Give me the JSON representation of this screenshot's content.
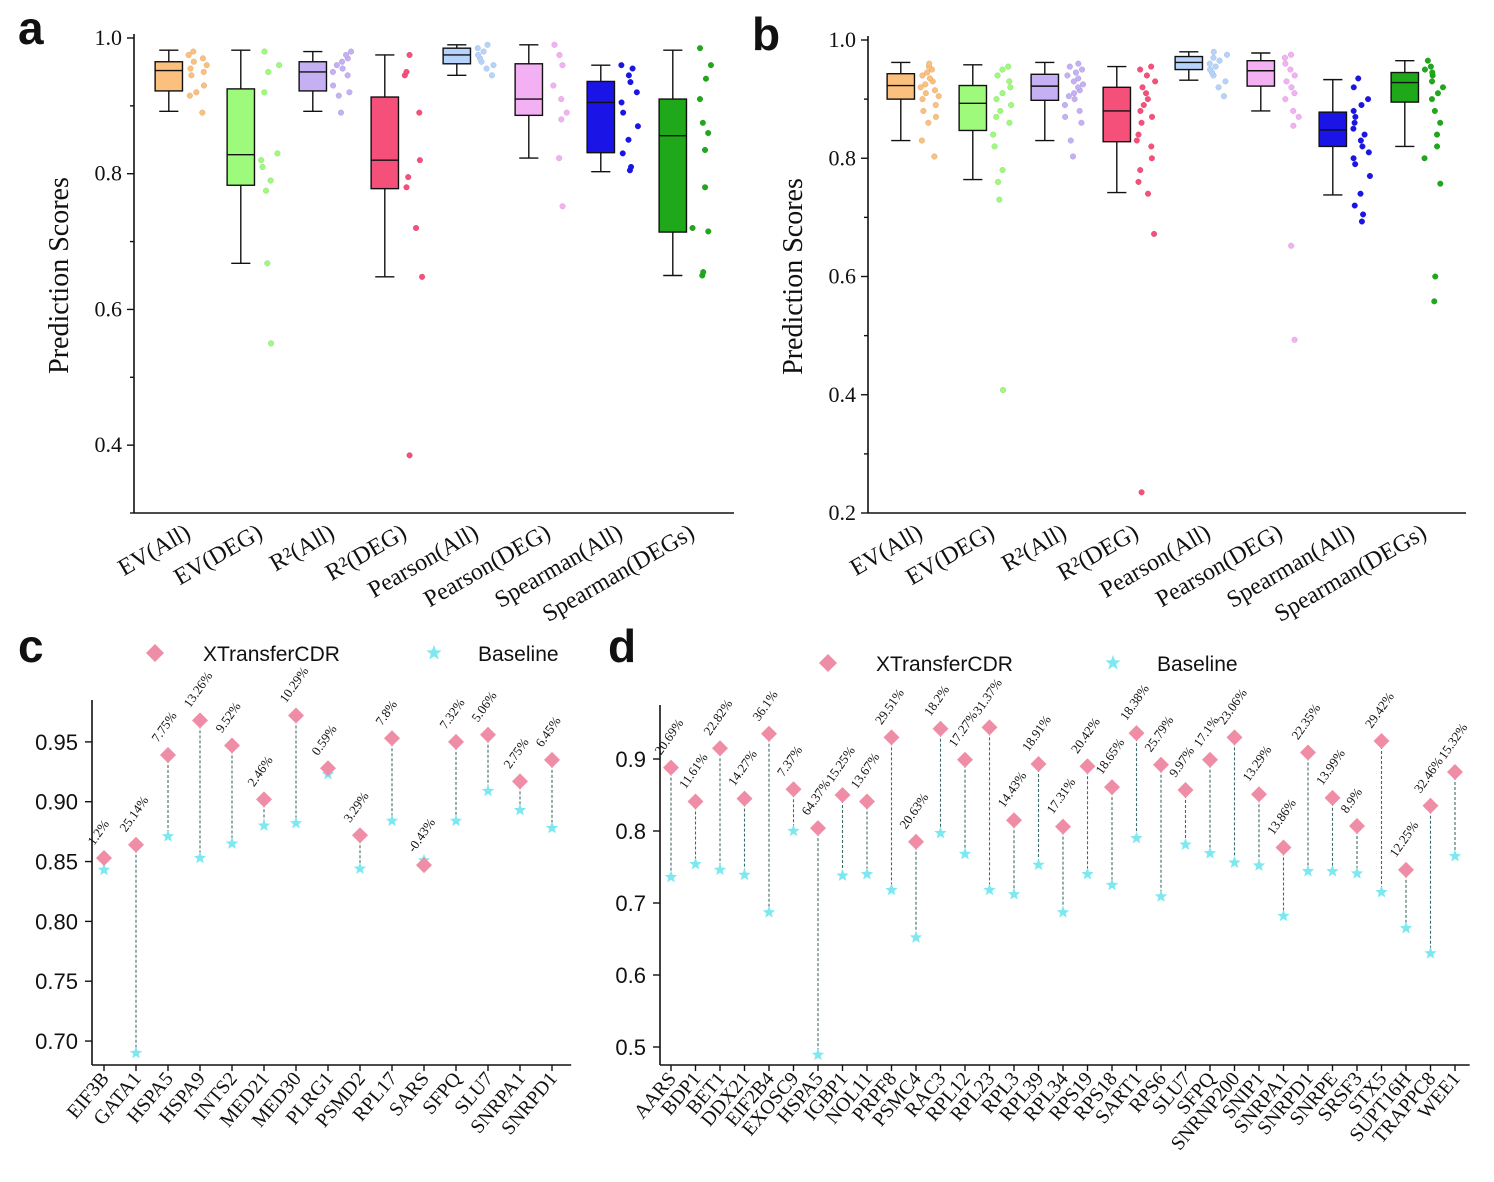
{
  "chart_data": [
    {
      "panel": "a",
      "type": "box",
      "ylabel": "Prediction Scores",
      "ylim": [
        0.3,
        1.0
      ],
      "yticks": [
        "0.4",
        "0.6",
        "0.8",
        "1.0"
      ],
      "categories": [
        "EV(All)",
        "EV(DEG)",
        "R²(All)",
        "R²(DEG)",
        "Pearson(All)",
        "Pearson(DEG)",
        "Spearman(All)",
        "Spearman(DEGs)"
      ],
      "colors": [
        "#fbbf7e",
        "#9dfa7a",
        "#c4b0f2",
        "#f5507a",
        "#b6d4fb",
        "#f3b0f3",
        "#1a15e6",
        "#1ea81a"
      ],
      "boxes": [
        {
          "min": 0.892,
          "q1": 0.922,
          "median": 0.952,
          "q3": 0.965,
          "max": 0.982,
          "points": [
            0.89,
            0.915,
            0.92,
            0.93,
            0.945,
            0.95,
            0.955,
            0.96,
            0.965,
            0.97,
            0.975,
            0.98
          ]
        },
        {
          "min": 0.668,
          "q1": 0.783,
          "median": 0.828,
          "q3": 0.925,
          "max": 0.982,
          "points": [
            0.55,
            0.668,
            0.775,
            0.79,
            0.81,
            0.82,
            0.83,
            0.92,
            0.95,
            0.96,
            0.98
          ]
        },
        {
          "min": 0.892,
          "q1": 0.922,
          "median": 0.95,
          "q3": 0.965,
          "max": 0.98,
          "points": [
            0.89,
            0.915,
            0.92,
            0.93,
            0.945,
            0.95,
            0.955,
            0.96,
            0.965,
            0.97,
            0.975,
            0.98
          ]
        },
        {
          "min": 0.648,
          "q1": 0.778,
          "median": 0.82,
          "q3": 0.913,
          "max": 0.975,
          "points": [
            0.385,
            0.648,
            0.72,
            0.78,
            0.795,
            0.82,
            0.89,
            0.945,
            0.95,
            0.975
          ]
        },
        {
          "min": 0.945,
          "q1": 0.962,
          "median": 0.975,
          "q3": 0.985,
          "max": 0.99,
          "points": [
            0.945,
            0.955,
            0.96,
            0.965,
            0.97,
            0.975,
            0.98,
            0.985,
            0.99
          ]
        },
        {
          "min": 0.823,
          "q1": 0.886,
          "median": 0.91,
          "q3": 0.962,
          "max": 0.99,
          "points": [
            0.752,
            0.823,
            0.88,
            0.89,
            0.91,
            0.93,
            0.96,
            0.975,
            0.99
          ]
        },
        {
          "min": 0.803,
          "q1": 0.831,
          "median": 0.905,
          "q3": 0.936,
          "max": 0.96,
          "points": [
            0.805,
            0.81,
            0.83,
            0.85,
            0.87,
            0.89,
            0.905,
            0.92,
            0.935,
            0.945,
            0.955,
            0.96
          ]
        },
        {
          "min": 0.65,
          "q1": 0.714,
          "median": 0.856,
          "q3": 0.91,
          "max": 0.982,
          "points": [
            0.65,
            0.655,
            0.715,
            0.72,
            0.78,
            0.835,
            0.86,
            0.875,
            0.91,
            0.94,
            0.96,
            0.985
          ]
        }
      ]
    },
    {
      "panel": "b",
      "type": "box",
      "ylabel": "Prediction Scores",
      "ylim": [
        0.2,
        1.0
      ],
      "yticks": [
        "0.2",
        "0.4",
        "0.6",
        "0.8",
        "1.0"
      ],
      "categories": [
        "EV(All)",
        "EV(DEG)",
        "R²(All)",
        "R²(DEG)",
        "Pearson(All)",
        "Pearson(DEG)",
        "Spearman(All)",
        "Spearman(DEGs)"
      ],
      "colors": [
        "#fbbf7e",
        "#9dfa7a",
        "#c4b0f2",
        "#f5507a",
        "#b6d4fb",
        "#f3b0f3",
        "#1a15e6",
        "#1ea81a"
      ],
      "boxes": [
        {
          "min": 0.83,
          "q1": 0.9,
          "median": 0.923,
          "q3": 0.943,
          "max": 0.962,
          "points": [
            0.803,
            0.83,
            0.86,
            0.87,
            0.88,
            0.89,
            0.9,
            0.905,
            0.91,
            0.915,
            0.92,
            0.925,
            0.93,
            0.935,
            0.94,
            0.945,
            0.95,
            0.955,
            0.96
          ]
        },
        {
          "min": 0.764,
          "q1": 0.847,
          "median": 0.893,
          "q3": 0.923,
          "max": 0.958,
          "points": [
            0.408,
            0.73,
            0.76,
            0.78,
            0.82,
            0.84,
            0.86,
            0.87,
            0.88,
            0.89,
            0.9,
            0.91,
            0.92,
            0.93,
            0.94,
            0.95,
            0.955
          ]
        },
        {
          "min": 0.83,
          "q1": 0.898,
          "median": 0.922,
          "q3": 0.942,
          "max": 0.962,
          "points": [
            0.803,
            0.83,
            0.86,
            0.87,
            0.88,
            0.89,
            0.9,
            0.905,
            0.91,
            0.915,
            0.92,
            0.925,
            0.93,
            0.935,
            0.94,
            0.945,
            0.95,
            0.955,
            0.96
          ]
        },
        {
          "min": 0.742,
          "q1": 0.828,
          "median": 0.88,
          "q3": 0.92,
          "max": 0.955,
          "points": [
            0.235,
            0.672,
            0.74,
            0.76,
            0.78,
            0.8,
            0.82,
            0.83,
            0.84,
            0.86,
            0.87,
            0.88,
            0.89,
            0.9,
            0.91,
            0.92,
            0.93,
            0.94,
            0.95,
            0.955
          ]
        },
        {
          "min": 0.932,
          "q1": 0.95,
          "median": 0.962,
          "q3": 0.972,
          "max": 0.98,
          "points": [
            0.905,
            0.92,
            0.93,
            0.94,
            0.945,
            0.95,
            0.955,
            0.96,
            0.965,
            0.97,
            0.975,
            0.98
          ]
        },
        {
          "min": 0.88,
          "q1": 0.922,
          "median": 0.948,
          "q3": 0.965,
          "max": 0.978,
          "points": [
            0.493,
            0.652,
            0.855,
            0.87,
            0.88,
            0.9,
            0.91,
            0.92,
            0.93,
            0.94,
            0.95,
            0.96,
            0.97,
            0.975
          ]
        },
        {
          "min": 0.738,
          "q1": 0.82,
          "median": 0.848,
          "q3": 0.878,
          "max": 0.933,
          "points": [
            0.693,
            0.705,
            0.72,
            0.74,
            0.77,
            0.79,
            0.8,
            0.81,
            0.82,
            0.83,
            0.84,
            0.85,
            0.86,
            0.87,
            0.88,
            0.89,
            0.9,
            0.92,
            0.935
          ]
        },
        {
          "min": 0.82,
          "q1": 0.895,
          "median": 0.928,
          "q3": 0.945,
          "max": 0.965,
          "points": [
            0.558,
            0.6,
            0.757,
            0.8,
            0.82,
            0.84,
            0.86,
            0.88,
            0.9,
            0.91,
            0.92,
            0.93,
            0.94,
            0.945,
            0.95,
            0.955,
            0.965
          ]
        }
      ]
    },
    {
      "panel": "c",
      "type": "scatter",
      "ylim": [
        0.68,
        0.985
      ],
      "yticks": [
        "0.70",
        "0.75",
        "0.80",
        "0.85",
        "0.90",
        "0.95"
      ],
      "legend": [
        "XTransferCDR",
        "Baseline"
      ],
      "categories": [
        "EIF3B",
        "GATA1",
        "HSPA5",
        "HSPA9",
        "INTS2",
        "MED21",
        "MED30",
        "PLRG1",
        "PSMD2",
        "RPL17",
        "SARS",
        "SFPQ",
        "SLU7",
        "SNRPA1",
        "SNRPD1"
      ],
      "xtransfercdr": [
        0.853,
        0.864,
        0.939,
        0.968,
        0.947,
        0.902,
        0.972,
        0.928,
        0.872,
        0.953,
        0.847,
        0.95,
        0.956,
        0.917,
        0.935
      ],
      "baseline": [
        0.843,
        0.69,
        0.871,
        0.853,
        0.865,
        0.88,
        0.882,
        0.923,
        0.844,
        0.884,
        0.851,
        0.884,
        0.909,
        0.893,
        0.878
      ],
      "labels": [
        "1.2%",
        "25.14%",
        "7.75%",
        "13.26%",
        "9.52%",
        "2.46%",
        "10.29%",
        "0.59%",
        "3.29%",
        "7.8%",
        "-0.43%",
        "7.32%",
        "5.06%",
        "2.75%",
        "6.45%"
      ]
    },
    {
      "panel": "d",
      "type": "scatter",
      "ylim": [
        0.475,
        0.975
      ],
      "yticks": [
        "0.5",
        "0.6",
        "0.7",
        "0.8",
        "0.9"
      ],
      "legend": [
        "XTransferCDR",
        "Baseline"
      ],
      "categories": [
        "AARS",
        "BDP1",
        "BET1",
        "DDX21",
        "EIF2B4",
        "EXOSC9",
        "HSPA5",
        "IGBP1",
        "NOL11",
        "PRPF8",
        "PSMC4",
        "RAC3",
        "RPL12",
        "RPL23",
        "RPL3",
        "RPL39",
        "RPL34",
        "RPS19",
        "RPS18",
        "SART1",
        "RPS6",
        "SLU7",
        "SFPQ",
        "SNRNP200",
        "SNIP1",
        "SNRPA1",
        "SNRPD1",
        "SNRPE",
        "SRSF3",
        "STX5",
        "SUPT16H",
        "TRAPPC8",
        "WEE1"
      ],
      "xtransfercdr": [
        0.888,
        0.841,
        0.915,
        0.845,
        0.935,
        0.858,
        0.804,
        0.85,
        0.841,
        0.93,
        0.785,
        0.942,
        0.899,
        0.944,
        0.815,
        0.893,
        0.806,
        0.89,
        0.861,
        0.936,
        0.892,
        0.857,
        0.899,
        0.93,
        0.851,
        0.777,
        0.909,
        0.846,
        0.807,
        0.925,
        0.746,
        0.835,
        0.882
      ],
      "baseline": [
        0.736,
        0.754,
        0.746,
        0.739,
        0.687,
        0.8,
        0.489,
        0.738,
        0.74,
        0.718,
        0.652,
        0.797,
        0.768,
        0.718,
        0.712,
        0.753,
        0.687,
        0.74,
        0.725,
        0.79,
        0.709,
        0.781,
        0.769,
        0.756,
        0.752,
        0.682,
        0.744,
        0.744,
        0.741,
        0.715,
        0.665,
        0.63,
        0.765
      ],
      "labels": [
        "20.69%",
        "11.61%",
        "22.82%",
        "14.27%",
        "36.1%",
        "7.37%",
        "64.37%",
        "15.25%",
        "13.67%",
        "29.51%",
        "20.63%",
        "18.2%",
        "17.27%",
        "31.37%",
        "14.43%",
        "18.91%",
        "17.31%",
        "20.42%",
        "18.65%",
        "18.38%",
        "25.79%",
        "9.97%",
        "17.1%",
        "23.06%",
        "13.29%",
        "13.86%",
        "22.35%",
        "13.99%",
        "8.9%",
        "29.42%",
        "12.25%",
        "32.46%",
        "15.32%"
      ]
    }
  ],
  "panel_letters": [
    "a",
    "b",
    "c",
    "d"
  ],
  "colors": {
    "xtransfercdr": "#f08da6",
    "baseline": "#7ee8f0",
    "connector": "#3c6b6b"
  }
}
